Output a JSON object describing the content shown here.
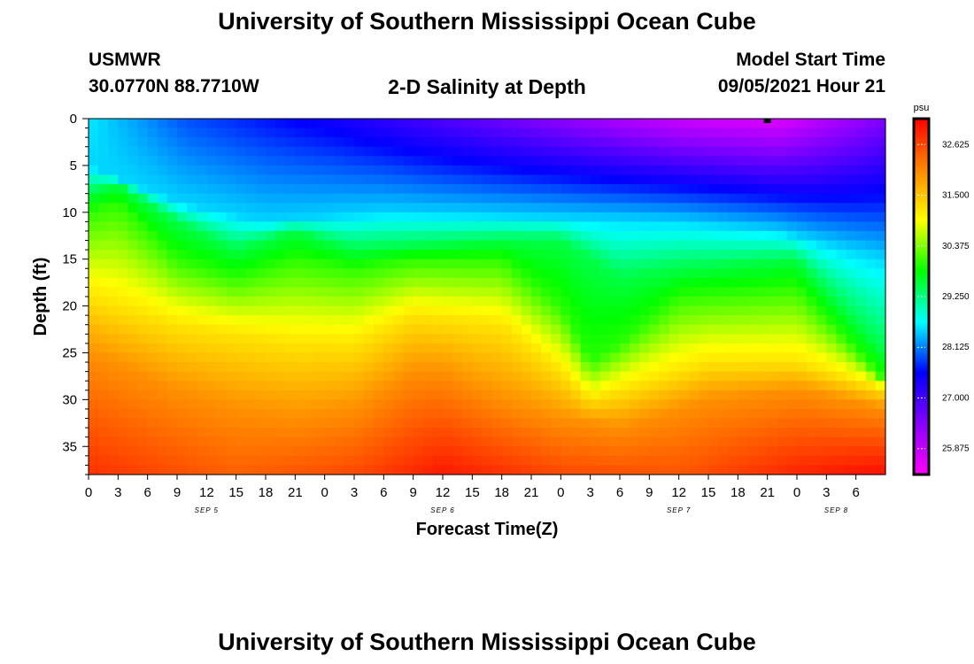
{
  "header": {
    "title": "University of Southern Mississippi Ocean Cube",
    "station": "USMWR",
    "coords": "30.0770N  88.7710W",
    "plot_title": "2-D Salinity at Depth",
    "start_label": "Model Start Time",
    "start_value": "09/05/2021 Hour 21"
  },
  "footer": {
    "title": "University of Southern Mississippi Ocean Cube"
  },
  "colors": {
    "scale": [
      "#ff00ff",
      "#8800ff",
      "#0000ff",
      "#00ffff",
      "#00ff00",
      "#ffff00",
      "#ff8800",
      "#ff0000"
    ]
  },
  "chart_data": {
    "type": "heatmap",
    "xlabel": "Forecast Time(Z)",
    "ylabel": "Depth (ft)",
    "x_range": [
      0,
      81
    ],
    "ylim": [
      0,
      38
    ],
    "y_ticks": [
      0,
      5,
      10,
      15,
      20,
      25,
      30,
      35
    ],
    "x_tick_labels": [
      "0",
      "3",
      "6",
      "9",
      "12",
      "15",
      "18",
      "21",
      "0",
      "3",
      "6",
      "9",
      "12",
      "15",
      "18",
      "21",
      "0",
      "3",
      "6",
      "9",
      "12",
      "15",
      "18",
      "21",
      "0",
      "3",
      "6"
    ],
    "date_labels": [
      {
        "label": "SEP 5",
        "hours": 12
      },
      {
        "label": "SEP 6",
        "hours": 36
      },
      {
        "label": "SEP 7",
        "hours": 60
      },
      {
        "label": "SEP 8",
        "hours": 76
      }
    ],
    "colorbar": {
      "unit": "psu",
      "min": 25.3,
      "max": 33.2,
      "ticks": [
        "32.625",
        "31.500",
        "30.375",
        "29.250",
        "28.125",
        "27.000",
        "25.875"
      ]
    },
    "marker": {
      "hours": 69,
      "depth": 0
    },
    "surface_salinity": [
      {
        "hours": 0,
        "value": 28.6
      },
      {
        "hours": 10,
        "value": 27.9
      },
      {
        "hours": 25,
        "value": 27.4
      },
      {
        "hours": 45,
        "value": 26.5
      },
      {
        "hours": 60,
        "value": 25.8
      },
      {
        "hours": 70,
        "value": 25.6
      },
      {
        "hours": 81,
        "value": 26.5
      }
    ],
    "isolines": {
      "salinity_28_5_depth": [
        {
          "hours": 0,
          "value": 5
        },
        {
          "hours": 9,
          "value": 9
        },
        {
          "hours": 18,
          "value": 11
        },
        {
          "hours": 30,
          "value": 10
        },
        {
          "hours": 45,
          "value": 10.5
        },
        {
          "hours": 60,
          "value": 11
        },
        {
          "hours": 70,
          "value": 12
        },
        {
          "hours": 81,
          "value": 15
        }
      ],
      "salinity_29_5_depth": [
        {
          "hours": 0,
          "value": 8
        },
        {
          "hours": 3,
          "value": 7
        },
        {
          "hours": 9,
          "value": 11
        },
        {
          "hours": 15,
          "value": 14
        },
        {
          "hours": 21,
          "value": 12
        },
        {
          "hours": 27,
          "value": 14
        },
        {
          "hours": 42,
          "value": 13
        },
        {
          "hours": 48,
          "value": 13
        },
        {
          "hours": 54,
          "value": 17
        },
        {
          "hours": 60,
          "value": 16
        },
        {
          "hours": 72,
          "value": 15
        },
        {
          "hours": 81,
          "value": 25
        }
      ],
      "salinity_30_0_depth": [
        {
          "hours": 0,
          "value": 10
        },
        {
          "hours": 3,
          "value": 9
        },
        {
          "hours": 9,
          "value": 15
        },
        {
          "hours": 15,
          "value": 17
        },
        {
          "hours": 21,
          "value": 15
        },
        {
          "hours": 27,
          "value": 16
        },
        {
          "hours": 33,
          "value": 15
        },
        {
          "hours": 42,
          "value": 15
        },
        {
          "hours": 48,
          "value": 20
        },
        {
          "hours": 51,
          "value": 26
        },
        {
          "hours": 54,
          "value": 24
        },
        {
          "hours": 60,
          "value": 19
        },
        {
          "hours": 72,
          "value": 18
        },
        {
          "hours": 81,
          "value": 28
        }
      ],
      "salinity_31_2_depth": [
        {
          "hours": 0,
          "value": 19
        },
        {
          "hours": 9,
          "value": 22
        },
        {
          "hours": 15,
          "value": 23
        },
        {
          "hours": 21,
          "value": 24
        },
        {
          "hours": 27,
          "value": 24
        },
        {
          "hours": 33,
          "value": 21
        },
        {
          "hours": 42,
          "value": 22
        },
        {
          "hours": 48,
          "value": 27
        },
        {
          "hours": 51,
          "value": 30
        },
        {
          "hours": 57,
          "value": 28
        },
        {
          "hours": 63,
          "value": 26
        },
        {
          "hours": 72,
          "value": 26
        },
        {
          "hours": 81,
          "value": 29
        }
      ],
      "salinity_32_0_depth": [
        {
          "hours": 0,
          "value": 25
        },
        {
          "hours": 9,
          "value": 29
        },
        {
          "hours": 15,
          "value": 31
        },
        {
          "hours": 21,
          "value": 32
        },
        {
          "hours": 27,
          "value": 31
        },
        {
          "hours": 33,
          "value": 27
        },
        {
          "hours": 36,
          "value": 27
        },
        {
          "hours": 42,
          "value": 30
        },
        {
          "hours": 48,
          "value": 32
        },
        {
          "hours": 54,
          "value": 33
        },
        {
          "hours": 63,
          "value": 30
        },
        {
          "hours": 72,
          "value": 29
        },
        {
          "hours": 81,
          "value": 31
        }
      ]
    },
    "bottom_salinity": [
      {
        "hours": 0,
        "value": 32.8
      },
      {
        "hours": 15,
        "value": 32.4
      },
      {
        "hours": 27,
        "value": 32.6
      },
      {
        "hours": 36,
        "value": 33.0
      },
      {
        "hours": 48,
        "value": 32.6
      },
      {
        "hours": 60,
        "value": 32.5
      },
      {
        "hours": 72,
        "value": 32.9
      },
      {
        "hours": 81,
        "value": 33.1
      }
    ]
  }
}
